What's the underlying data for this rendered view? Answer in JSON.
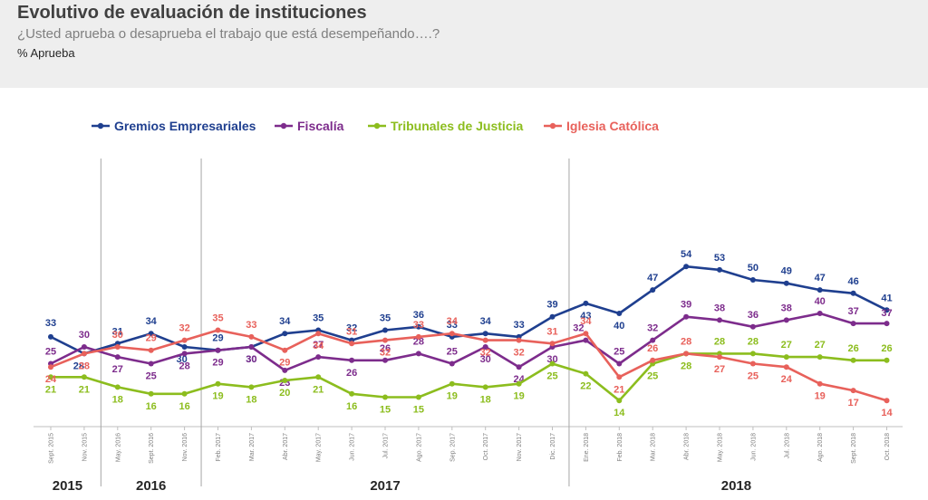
{
  "header": {
    "title": "Evolutivo de evaluación de instituciones",
    "subtitle": "¿Usted aprueba o desaprueba el trabajo que está desempeñando….?",
    "note": "% Aprueba"
  },
  "chart_data": {
    "type": "line",
    "x": [
      "Sept. 2015",
      "Nov. 2015",
      "May. 2016",
      "Sept. 2016",
      "Nov. 2016",
      "Feb. 2017",
      "Mar. 2017",
      "Abr. 2017",
      "May. 2017",
      "Jun. 2017",
      "Jul. 2017",
      "Ago. 2017",
      "Sep. 2017",
      "Oct. 2017",
      "Nov. 2017",
      "Dic. 2017",
      "Ene. 2018",
      "Feb. 2018",
      "Mar. 2018",
      "Abr. 2018",
      "May. 2018",
      "Jun. 2018",
      "Jul. 2018",
      "Ago. 2018",
      "Sept. 2018",
      "Oct. 2018"
    ],
    "years": [
      {
        "label": "2015",
        "from": 0,
        "to": 1
      },
      {
        "label": "2016",
        "from": 2,
        "to": 4
      },
      {
        "label": "2017",
        "from": 5,
        "to": 15
      },
      {
        "label": "2018",
        "from": 16,
        "to": 25
      }
    ],
    "ylim": [
      0,
      60
    ],
    "grid": false,
    "legend_position": "top",
    "series": [
      {
        "name": "Gremios Empresariales",
        "color": "#1f3f8f",
        "values": [
          33,
          28,
          31,
          34,
          30,
          29,
          30,
          34,
          35,
          32,
          35,
          36,
          33,
          34,
          33,
          39,
          43,
          40,
          47,
          54,
          53,
          50,
          49,
          47,
          46,
          41
        ]
      },
      {
        "name": "Fiscalía",
        "color": "#7d2c8c",
        "values": [
          25,
          30,
          27,
          25,
          28,
          29,
          30,
          23,
          27,
          26,
          26,
          28,
          25,
          30,
          24,
          30,
          32,
          25,
          32,
          39,
          38,
          36,
          38,
          40,
          37,
          37
        ]
      },
      {
        "name": "Tribunales de Justicia",
        "color": "#8cbd1e",
        "values": [
          21,
          21,
          18,
          16,
          16,
          19,
          18,
          20,
          21,
          16,
          15,
          15,
          19,
          18,
          19,
          25,
          22,
          14,
          25,
          28,
          28,
          28,
          27,
          27,
          26,
          26
        ]
      },
      {
        "name": "Iglesia Católica",
        "color": "#e8615b",
        "values": [
          24,
          28,
          30,
          29,
          32,
          35,
          33,
          29,
          34,
          31,
          32,
          33,
          34,
          32,
          32,
          31,
          34,
          21,
          26,
          28,
          27,
          25,
          24,
          19,
          17,
          14
        ]
      }
    ]
  }
}
